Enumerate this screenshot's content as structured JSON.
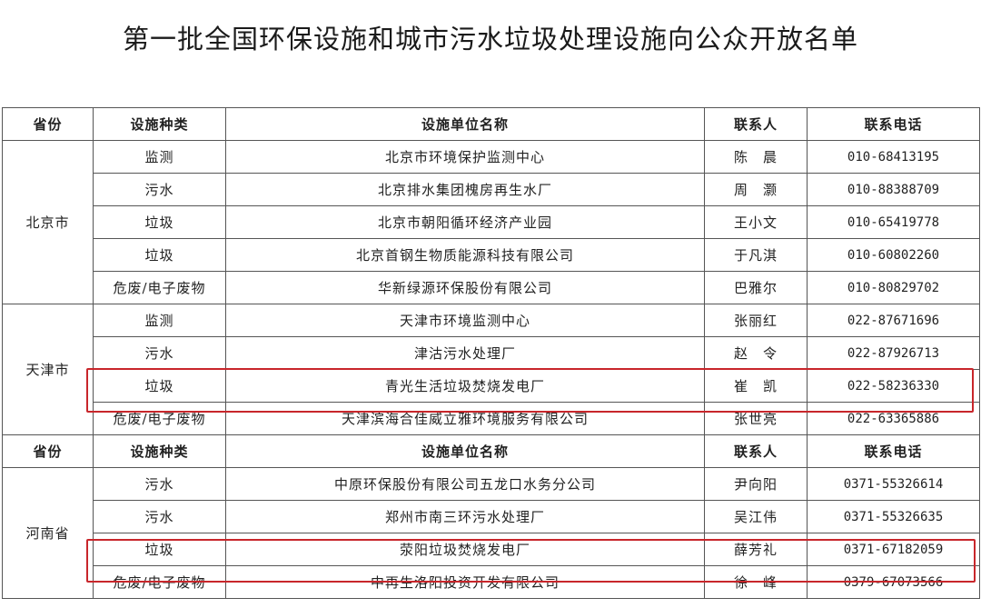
{
  "title": "第一批全国环保设施和城市污水垃圾处理设施向公众开放名单",
  "headers": [
    "省份",
    "设施种类",
    "设施单位名称",
    "联系人",
    "联系电话"
  ],
  "groups": [
    {
      "province": "北京市",
      "rows": [
        {
          "type": "监测",
          "name": "北京市环境保护监测中心",
          "contact": "陈　晨",
          "phone": "010-68413195"
        },
        {
          "type": "污水",
          "name": "北京排水集团槐房再生水厂",
          "contact": "周　灏",
          "phone": "010-88388709"
        },
        {
          "type": "垃圾",
          "name": "北京市朝阳循环经济产业园",
          "contact": "王小文",
          "phone": "010-65419778"
        },
        {
          "type": "垃圾",
          "name": "北京首钢生物质能源科技有限公司",
          "contact": "于凡淇",
          "phone": "010-60802260"
        },
        {
          "type": "危废/电子废物",
          "name": "华新绿源环保股份有限公司",
          "contact": "巴雅尔",
          "phone": "010-80829702"
        }
      ]
    },
    {
      "province": "天津市",
      "rows": [
        {
          "type": "监测",
          "name": "天津市环境监测中心",
          "contact": "张丽红",
          "phone": "022-87671696"
        },
        {
          "type": "污水",
          "name": "津沽污水处理厂",
          "contact": "赵　令",
          "phone": "022-87926713"
        },
        {
          "type": "垃圾",
          "name": "青光生活垃圾焚烧发电厂",
          "contact": "崔　凯",
          "phone": "022-58236330",
          "highlighted": true
        },
        {
          "type": "危废/电子废物",
          "name": "天津滨海合佳威立雅环境服务有限公司",
          "contact": "张世亮",
          "phone": "022-63365886"
        }
      ]
    },
    {
      "province": "河南省",
      "rows": [
        {
          "type": "污水",
          "name": "中原环保股份有限公司五龙口水务分公司",
          "contact": "尹向阳",
          "phone": "0371-55326614"
        },
        {
          "type": "污水",
          "name": "郑州市南三环污水处理厂",
          "contact": "吴江伟",
          "phone": "0371-55326635"
        },
        {
          "type": "垃圾",
          "name": "荥阳垃圾焚烧发电厂",
          "contact": "薛芳礼",
          "phone": "0371-67182059",
          "highlighted": true
        },
        {
          "type": "危废/电子废物",
          "name": "中再生洛阳投资开发有限公司",
          "contact": "徐　峰",
          "phone": "0379-67073566"
        }
      ]
    }
  ],
  "highlight_color": "#c8262b"
}
